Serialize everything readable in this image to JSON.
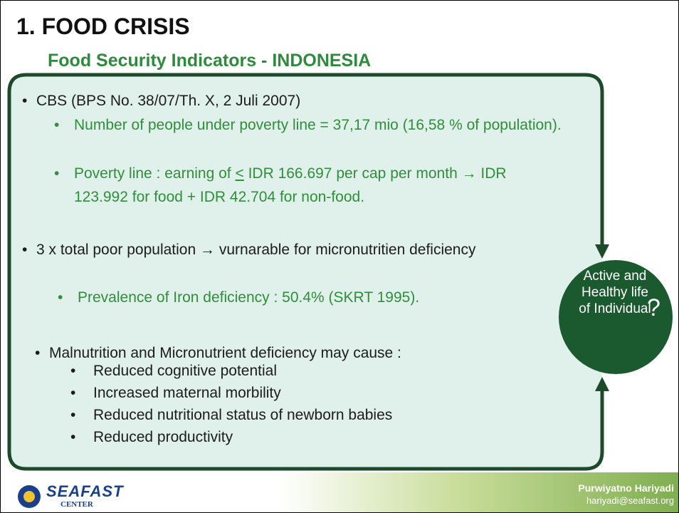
{
  "header": {
    "title": "1. FOOD CRISIS",
    "subtitle": "Food Security Indicators - INDONESIA"
  },
  "bullets": [
    {
      "text": "CBS (BPS No. 38/07/Th. X, 2 Juli 2007)",
      "sub": [
        {
          "parts": [
            "Number of people under poverty line = 37,17 mio (16,58 % of population)."
          ]
        },
        {
          "parts": [
            "Poverty line : earning of ",
            "<",
            " IDR 166.697 per cap per month → IDR 123.992 for food  + IDR 42.704 for non-food."
          ]
        }
      ]
    },
    {
      "text": "3 x total poor population → vurnarable for micronutritien deficiency",
      "sub": [
        {
          "parts": [
            "Prevalence of Iron deficiency : 50.4% (SKRT 1995)."
          ]
        }
      ]
    },
    {
      "text": "Malnutrition and Micronutrient deficiency may cause :",
      "sub": [
        {
          "parts": [
            "Reduced cognitive potential"
          ]
        },
        {
          "parts": [
            "Increased maternal morbility"
          ]
        },
        {
          "parts": [
            "Reduced nutritional status of newborn babies"
          ]
        },
        {
          "parts": [
            "Reduced productivity"
          ]
        }
      ]
    }
  ],
  "goal": {
    "label": "Active and Healthy life of Individual",
    "mark": "?"
  },
  "footer": {
    "author": "Purwiyatno Hariyadi",
    "email": "hariyadi@seafast.org",
    "logo": "SEAFAST",
    "logo_sub": "CENTER"
  }
}
